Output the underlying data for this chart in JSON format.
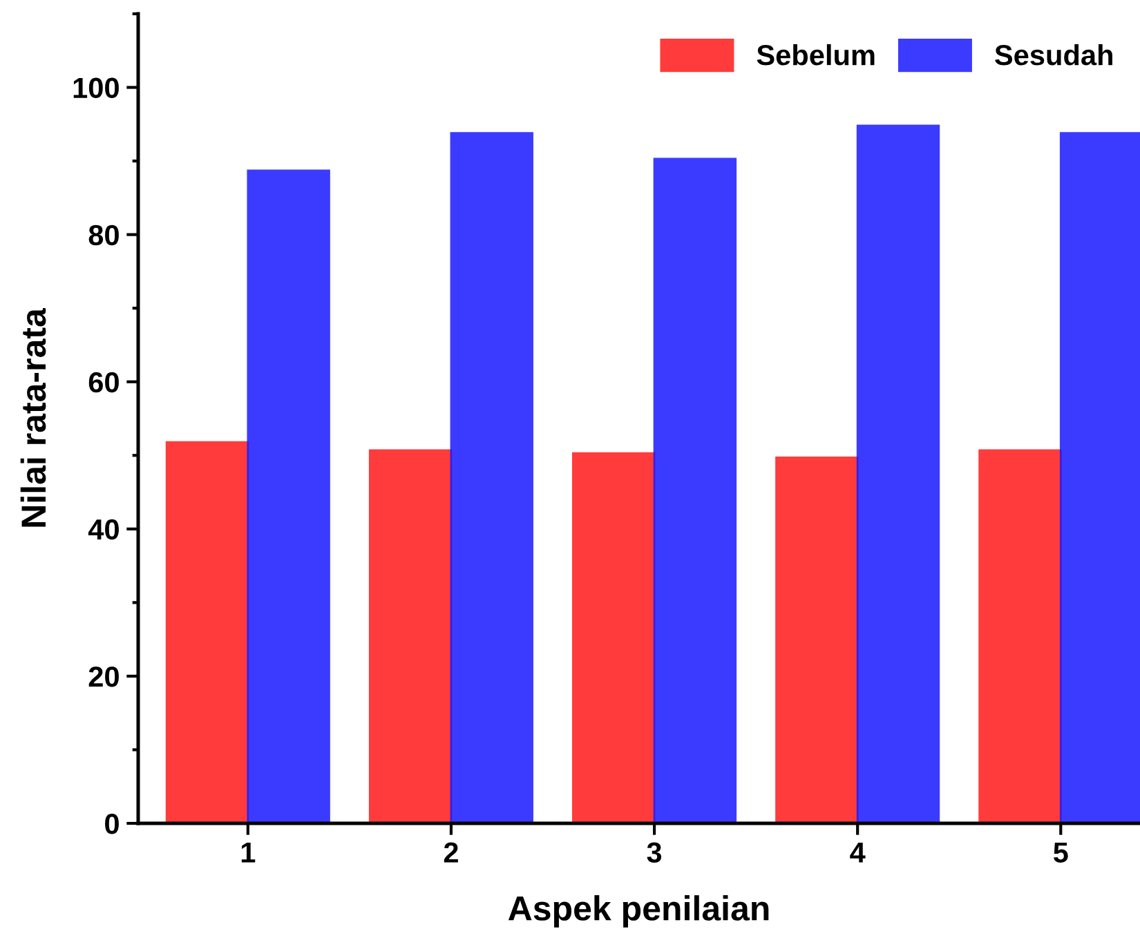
{
  "chart_data": {
    "type": "bar",
    "xlabel": "Aspek penilaian",
    "ylabel": "Nilai rata-rata",
    "categories": [
      "1",
      "2",
      "3",
      "4",
      "5"
    ],
    "series": [
      {
        "name": "Sebelum",
        "color": "#ff1a1a",
        "values": [
          51.8,
          50.7,
          50.3,
          49.7,
          50.7
        ]
      },
      {
        "name": "Sesudah",
        "color": "#1a1aff",
        "values": [
          88.7,
          93.8,
          90.3,
          94.8,
          93.8
        ]
      }
    ],
    "ylim": [
      0,
      110
    ],
    "yticks": [
      0,
      20,
      40,
      60,
      80,
      100
    ],
    "legend": "top right",
    "grid": false
  }
}
